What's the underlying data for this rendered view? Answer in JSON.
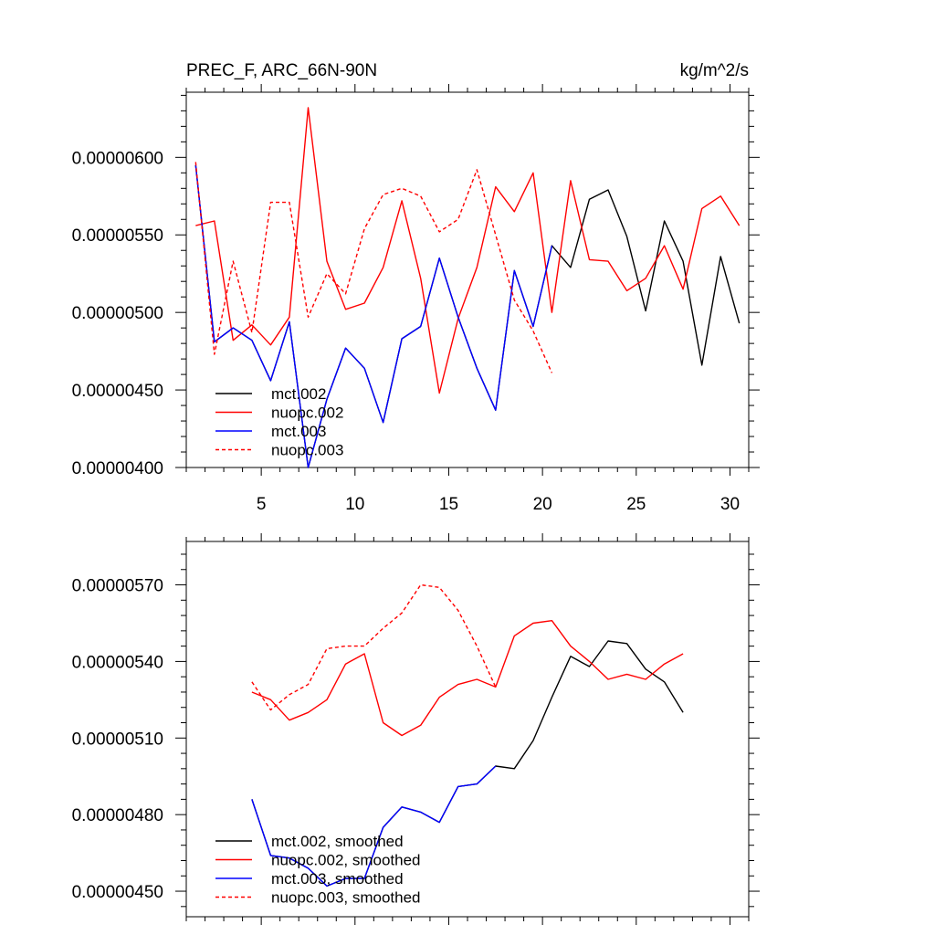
{
  "chart_data": [
    {
      "type": "line",
      "title": "PREC_F, ARC_66N-90N",
      "units_label": "kg/m^2/s",
      "xlim": [
        1,
        31
      ],
      "ylim": [
        4e-06,
        6.42e-06
      ],
      "xticks": [
        5,
        10,
        15,
        20,
        25,
        30
      ],
      "xtick_labels": [
        "5",
        "10",
        "15",
        "20",
        "25",
        "30"
      ],
      "yticks": [
        4e-06,
        4.5e-06,
        5e-06,
        5.5e-06,
        6e-06
      ],
      "ytick_labels": [
        "0.00000400",
        "0.00000450",
        "0.00000500",
        "0.00000550",
        "0.00000600"
      ],
      "legend_position": "bottom-left",
      "series": [
        {
          "name": "mct.002",
          "color": "#000000",
          "dash": "solid",
          "x": [
            1.5,
            2.5,
            3.5,
            4.5,
            5.5,
            6.5,
            7.5,
            8.5,
            9.5,
            10.5,
            11.5,
            12.5,
            13.5,
            14.5,
            15.5,
            16.5,
            17.5,
            18.5,
            19.5,
            20.5,
            21.5,
            22.5,
            23.5,
            24.5,
            25.5,
            26.5,
            27.5,
            28.5,
            29.5,
            30.5
          ],
          "y": [
            5.95e-06,
            4.81e-06,
            4.9e-06,
            4.82e-06,
            4.56e-06,
            4.94e-06,
            4e-06,
            4.44e-06,
            4.77e-06,
            4.64e-06,
            4.29e-06,
            4.83e-06,
            4.91e-06,
            5.35e-06,
            4.97e-06,
            4.64e-06,
            4.37e-06,
            5.27e-06,
            4.91e-06,
            5.43e-06,
            5.29e-06,
            5.73e-06,
            5.79e-06,
            5.49e-06,
            5.01e-06,
            5.59e-06,
            5.33e-06,
            4.66e-06,
            5.36e-06,
            4.93e-06
          ]
        },
        {
          "name": "nuopc.002",
          "color": "#ff0000",
          "dash": "solid",
          "x": [
            1.5,
            2.5,
            3.5,
            4.5,
            5.5,
            6.5,
            7.5,
            8.5,
            9.5,
            10.5,
            11.5,
            12.5,
            13.5,
            14.5,
            15.5,
            16.5,
            17.5,
            18.5,
            19.5,
            20.5,
            21.5,
            22.5,
            23.5,
            24.5,
            25.5,
            26.5,
            27.5,
            28.5,
            29.5,
            30.5
          ],
          "y": [
            5.56e-06,
            5.59e-06,
            4.82e-06,
            4.92e-06,
            4.79e-06,
            4.97e-06,
            6.32e-06,
            5.33e-06,
            5.02e-06,
            5.06e-06,
            5.29e-06,
            5.72e-06,
            5.22e-06,
            4.48e-06,
            4.96e-06,
            5.29e-06,
            5.81e-06,
            5.65e-06,
            5.9e-06,
            5e-06,
            5.85e-06,
            5.34e-06,
            5.33e-06,
            5.14e-06,
            5.22e-06,
            5.43e-06,
            5.15e-06,
            5.67e-06,
            5.75e-06,
            5.56e-06
          ]
        },
        {
          "name": "mct.003",
          "color": "#0000ff",
          "dash": "solid",
          "x": [
            1.5,
            2.5,
            3.5,
            4.5,
            5.5,
            6.5,
            7.5,
            8.5,
            9.5,
            10.5,
            11.5,
            12.5,
            13.5,
            14.5,
            15.5,
            16.5,
            17.5,
            18.5,
            19.5,
            20.5
          ],
          "y": [
            5.95e-06,
            4.81e-06,
            4.9e-06,
            4.82e-06,
            4.56e-06,
            4.94e-06,
            4e-06,
            4.44e-06,
            4.77e-06,
            4.64e-06,
            4.29e-06,
            4.83e-06,
            4.91e-06,
            5.35e-06,
            4.97e-06,
            4.64e-06,
            4.37e-06,
            5.27e-06,
            4.91e-06,
            5.43e-06
          ]
        },
        {
          "name": "nuopc.003",
          "color": "#ff0000",
          "dash": "dashed",
          "x": [
            1.5,
            2.5,
            3.5,
            4.5,
            5.5,
            6.5,
            7.5,
            8.5,
            9.5,
            10.5,
            11.5,
            12.5,
            13.5,
            14.5,
            15.5,
            16.5,
            17.5,
            18.5,
            19.5,
            20.5
          ],
          "y": [
            5.97e-06,
            4.73e-06,
            5.33e-06,
            4.87e-06,
            5.71e-06,
            5.71e-06,
            4.97e-06,
            5.25e-06,
            5.12e-06,
            5.54e-06,
            5.76e-06,
            5.8e-06,
            5.75e-06,
            5.52e-06,
            5.6e-06,
            5.92e-06,
            5.5e-06,
            5.08e-06,
            4.88e-06,
            4.61e-06
          ]
        }
      ]
    },
    {
      "type": "line",
      "xlim": [
        1,
        31
      ],
      "ylim": [
        4.4e-06,
        5.87e-06
      ],
      "xticks": [
        5,
        10,
        15,
        20,
        25,
        30
      ],
      "yticks": [
        4.5e-06,
        4.8e-06,
        5.1e-06,
        5.4e-06,
        5.7e-06
      ],
      "ytick_labels": [
        "0.00000450",
        "0.00000480",
        "0.00000510",
        "0.00000540",
        "0.00000570"
      ],
      "legend_position": "bottom-left",
      "series": [
        {
          "name": "mct.002, smoothed",
          "color": "#000000",
          "dash": "solid",
          "x": [
            4.5,
            5.5,
            6.5,
            7.5,
            8.5,
            9.5,
            10.5,
            11.5,
            12.5,
            13.5,
            14.5,
            15.5,
            16.5,
            17.5,
            18.5,
            19.5,
            20.5,
            21.5,
            22.5,
            23.5,
            24.5,
            25.5,
            26.5,
            27.5
          ],
          "y": [
            4.86e-06,
            4.64e-06,
            4.63e-06,
            4.59e-06,
            4.52e-06,
            4.55e-06,
            4.55e-06,
            4.75e-06,
            4.83e-06,
            4.81e-06,
            4.77e-06,
            4.91e-06,
            4.92e-06,
            4.99e-06,
            4.98e-06,
            5.09e-06,
            5.26e-06,
            5.42e-06,
            5.38e-06,
            5.48e-06,
            5.47e-06,
            5.37e-06,
            5.32e-06,
            5.2e-06
          ]
        },
        {
          "name": "nuopc.002, smoothed",
          "color": "#ff0000",
          "dash": "solid",
          "x": [
            4.5,
            5.5,
            6.5,
            7.5,
            8.5,
            9.5,
            10.5,
            11.5,
            12.5,
            13.5,
            14.5,
            15.5,
            16.5,
            17.5,
            18.5,
            19.5,
            20.5,
            21.5,
            22.5,
            23.5,
            24.5,
            25.5,
            26.5,
            27.5
          ],
          "y": [
            5.28e-06,
            5.25e-06,
            5.17e-06,
            5.2e-06,
            5.25e-06,
            5.39e-06,
            5.43e-06,
            5.16e-06,
            5.11e-06,
            5.15e-06,
            5.26e-06,
            5.31e-06,
            5.33e-06,
            5.3e-06,
            5.5e-06,
            5.55e-06,
            5.56e-06,
            5.46e-06,
            5.4e-06,
            5.33e-06,
            5.35e-06,
            5.33e-06,
            5.39e-06,
            5.43e-06
          ]
        },
        {
          "name": "mct.003, smoothed",
          "color": "#0000ff",
          "dash": "solid",
          "x": [
            4.5,
            5.5,
            6.5,
            7.5,
            8.5,
            9.5,
            10.5,
            11.5,
            12.5,
            13.5,
            14.5,
            15.5,
            16.5,
            17.5
          ],
          "y": [
            4.86e-06,
            4.64e-06,
            4.63e-06,
            4.59e-06,
            4.52e-06,
            4.55e-06,
            4.55e-06,
            4.75e-06,
            4.83e-06,
            4.81e-06,
            4.77e-06,
            4.91e-06,
            4.92e-06,
            4.99e-06
          ]
        },
        {
          "name": "nuopc.003, smoothed",
          "color": "#ff0000",
          "dash": "dashed",
          "x": [
            4.5,
            5.5,
            6.5,
            7.5,
            8.5,
            9.5,
            10.5,
            11.5,
            12.5,
            13.5,
            14.5,
            15.5,
            16.5,
            17.5
          ],
          "y": [
            5.32e-06,
            5.21e-06,
            5.27e-06,
            5.31e-06,
            5.45e-06,
            5.46e-06,
            5.46e-06,
            5.53e-06,
            5.59e-06,
            5.7e-06,
            5.69e-06,
            5.6e-06,
            5.46e-06,
            5.3e-06
          ]
        }
      ]
    }
  ]
}
